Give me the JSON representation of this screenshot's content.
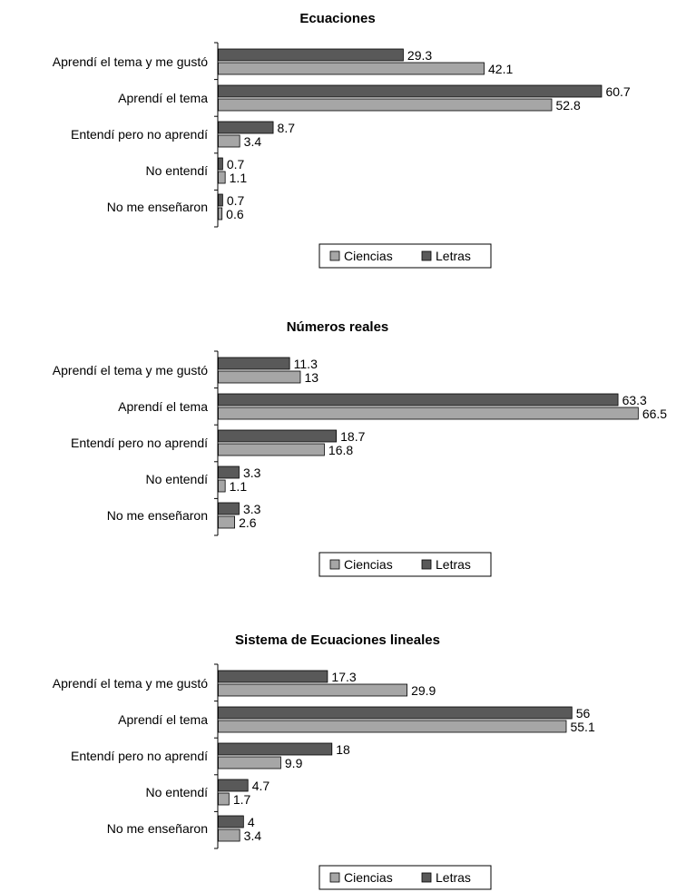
{
  "colors": {
    "Letras": "#595959",
    "Ciencias": "#a6a6a6",
    "stroke": "#000000"
  },
  "chart_data": [
    {
      "type": "bar",
      "orientation": "horizontal",
      "title": "Ecuaciones",
      "categories": [
        "Aprendí el tema y me gustó",
        "Aprendí el tema",
        "Entendí pero no aprendí",
        "No entendí",
        "No me enseñaron"
      ],
      "series": [
        {
          "name": "Letras",
          "values": [
            29.3,
            60.7,
            8.7,
            0.7,
            0.7
          ]
        },
        {
          "name": "Ciencias",
          "values": [
            42.1,
            52.8,
            3.4,
            1.1,
            0.6
          ]
        }
      ],
      "legend": [
        "Ciencias",
        "Letras"
      ],
      "legend_position": "bottom",
      "grid": false
    },
    {
      "type": "bar",
      "orientation": "horizontal",
      "title": "Números reales",
      "categories": [
        "Aprendí el tema y me gustó",
        "Aprendí el tema",
        "Entendí pero no aprendí",
        "No entendí",
        "No me enseñaron"
      ],
      "series": [
        {
          "name": "Letras",
          "values": [
            11.3,
            63.3,
            18.7,
            3.3,
            3.3
          ]
        },
        {
          "name": "Ciencias",
          "values": [
            13,
            66.5,
            16.8,
            1.1,
            2.6
          ]
        }
      ],
      "legend": [
        "Ciencias",
        "Letras"
      ],
      "legend_position": "bottom",
      "grid": false
    },
    {
      "type": "bar",
      "orientation": "horizontal",
      "title": "Sistema de Ecuaciones lineales",
      "categories": [
        "Aprendí el tema y me gustó",
        "Aprendí el tema",
        "Entendí pero no aprendí",
        "No entendí",
        "No me enseñaron"
      ],
      "series": [
        {
          "name": "Letras",
          "values": [
            17.3,
            56,
            18,
            4.7,
            4
          ]
        },
        {
          "name": "Ciencias",
          "values": [
            29.9,
            55.1,
            9.9,
            1.7,
            3.4
          ]
        }
      ],
      "legend": [
        "Ciencias",
        "Letras"
      ],
      "legend_position": "bottom",
      "grid": false
    }
  ]
}
